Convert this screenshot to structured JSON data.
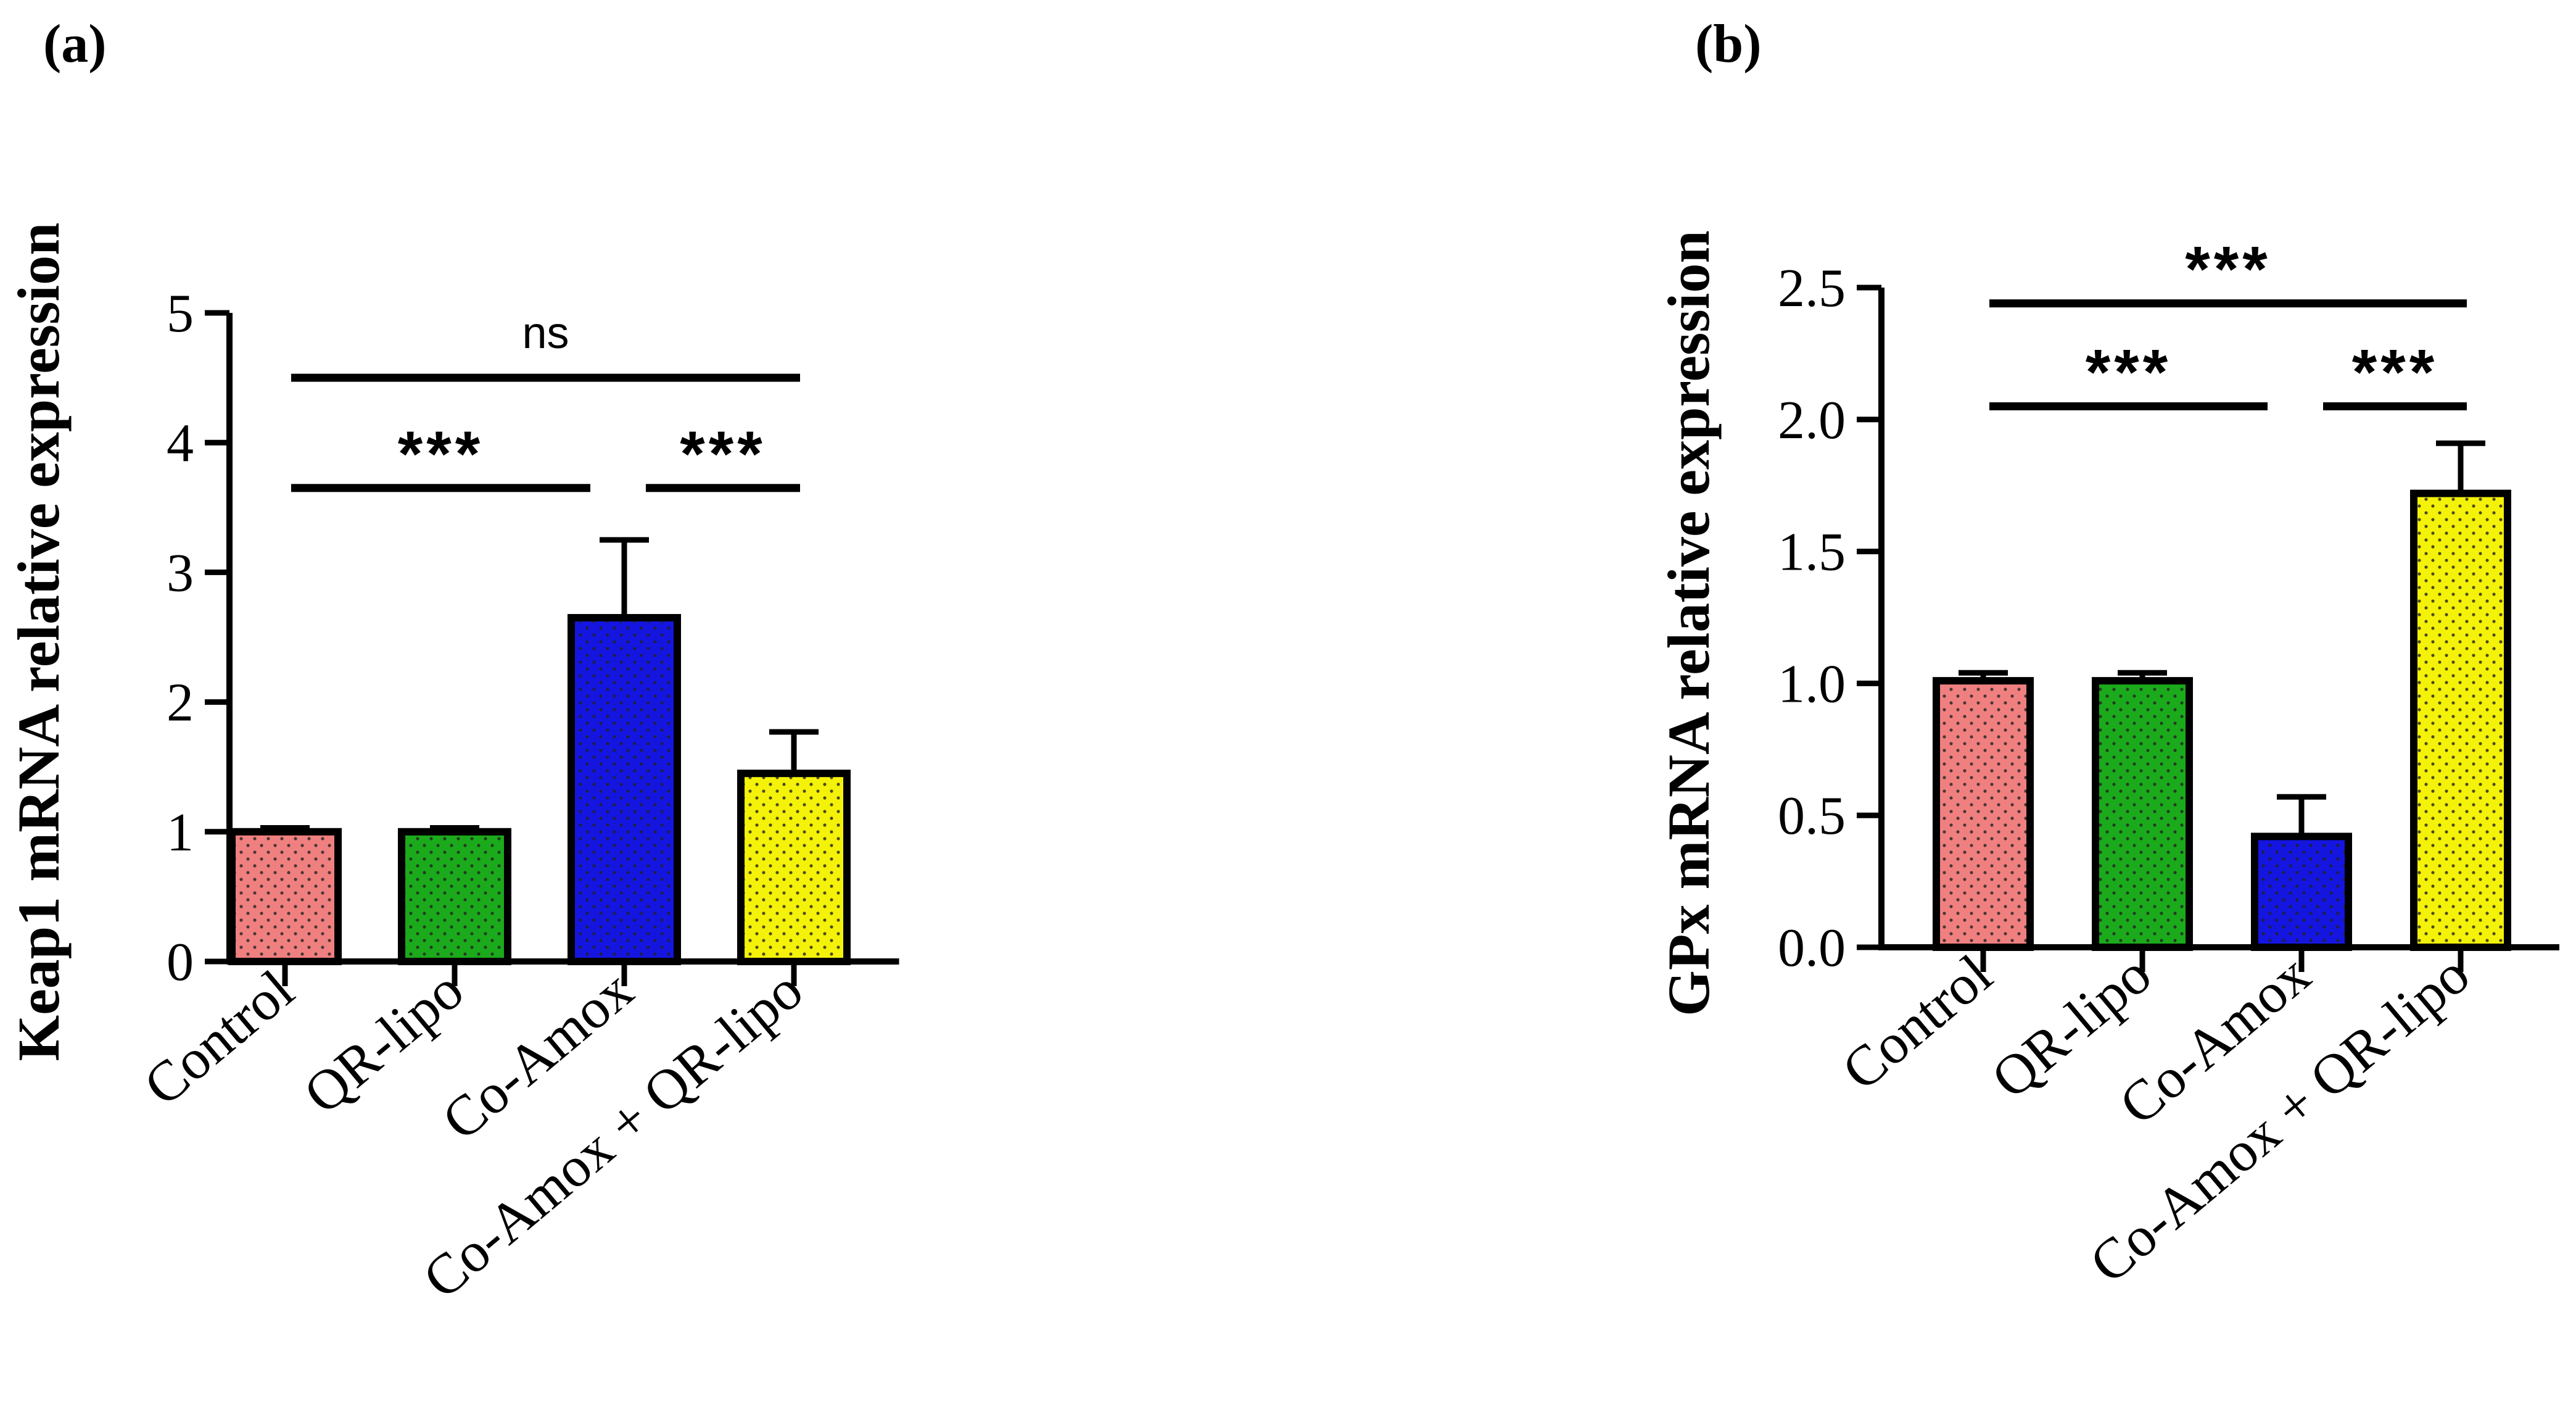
{
  "chart_data": [
    {
      "type": "bar",
      "panel_label": "(a)",
      "ylabel": "Keap1 mRNA relative expression",
      "xlabel": "",
      "categories": [
        "Control",
        "QR-lipo",
        "Co-Amox",
        "Co-Amox + QR-lipo"
      ],
      "values": [
        1.0,
        1.0,
        2.65,
        1.45
      ],
      "errors": [
        0.03,
        0.03,
        0.6,
        0.32
      ],
      "colors": [
        "#F08080",
        "#1BAA1B",
        "#1515E0",
        "#F5F20A"
      ],
      "ylim": [
        0,
        5
      ],
      "yticks": [
        "0",
        "1",
        "2",
        "3",
        "4",
        "5"
      ],
      "ytick_values": [
        0,
        1,
        2,
        3,
        4,
        5
      ],
      "comparisons": [
        {
          "from": 0,
          "to": 3,
          "label": "ns",
          "level": 4.5
        },
        {
          "from": 0,
          "to": 2,
          "label": "***",
          "level": 3.65
        },
        {
          "from": 2,
          "to": 3,
          "label": "***",
          "level": 3.65
        }
      ]
    },
    {
      "type": "bar",
      "panel_label": "(b)",
      "ylabel": "GPx mRNA relative expression",
      "xlabel": "",
      "categories": [
        "Control",
        "QR-lipo",
        "Co-Amox",
        "Co-Amox + QR-lipo"
      ],
      "values": [
        1.01,
        1.01,
        0.42,
        1.72
      ],
      "errors": [
        0.03,
        0.03,
        0.15,
        0.19
      ],
      "colors": [
        "#F08080",
        "#1BAA1B",
        "#1515E0",
        "#F5F20A"
      ],
      "ylim": [
        0,
        2.5
      ],
      "yticks": [
        "0.0",
        "0.5",
        "1.0",
        "1.5",
        "2.0",
        "2.5"
      ],
      "ytick_values": [
        0,
        0.5,
        1.0,
        1.5,
        2.0,
        2.5
      ],
      "comparisons": [
        {
          "from": 0,
          "to": 3,
          "label": "***",
          "level": 2.44
        },
        {
          "from": 0,
          "to": 2,
          "label": "***",
          "level": 2.05
        },
        {
          "from": 2,
          "to": 3,
          "label": "***",
          "level": 2.05
        }
      ]
    }
  ]
}
